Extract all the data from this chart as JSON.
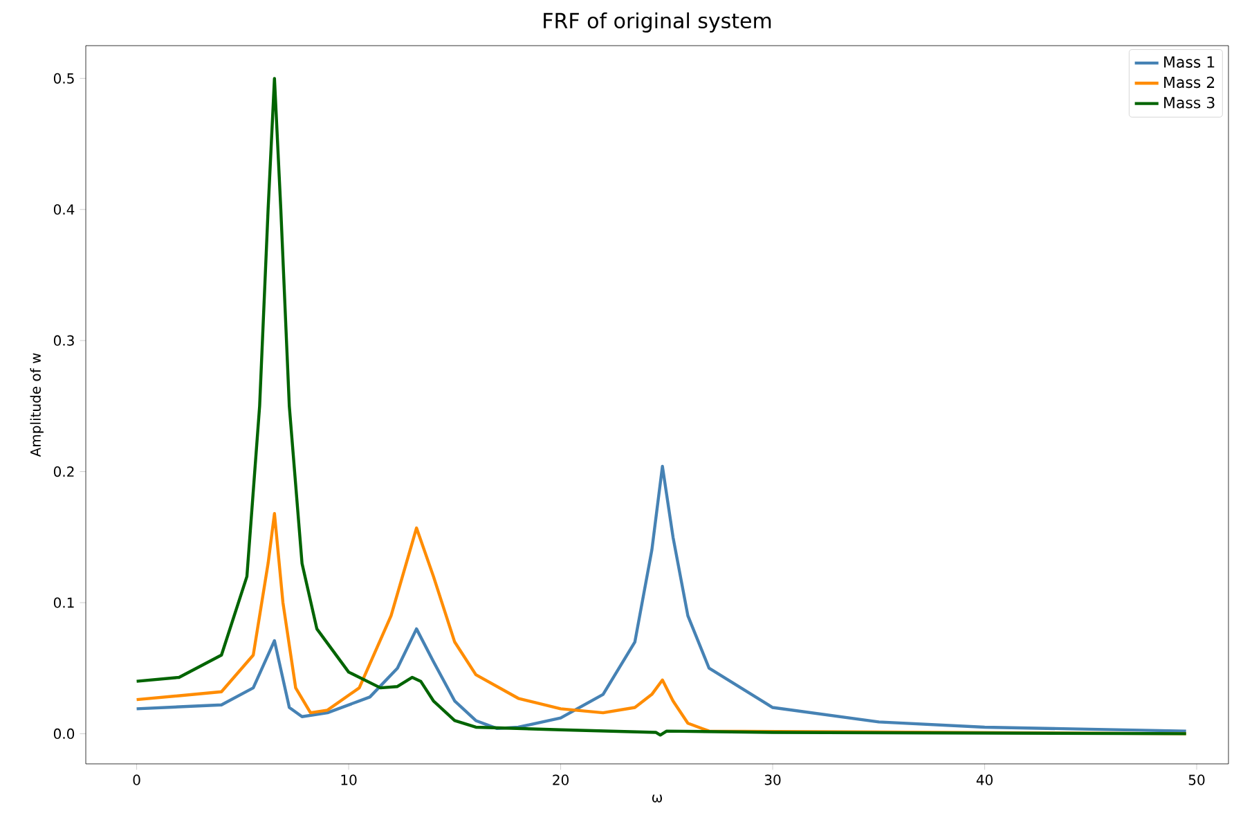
{
  "chart_data": {
    "type": "line",
    "title": "FRF of original system",
    "xlabel": "ω",
    "ylabel": "Amplitude of w",
    "xlim": [
      -2.4,
      51.5
    ],
    "ylim": [
      -0.023,
      0.525
    ],
    "xticks": [
      0,
      10,
      20,
      30,
      40,
      50
    ],
    "yticks": [
      {
        "value": 0,
        "label": "0.0"
      },
      {
        "value": 0.1,
        "label": "0.1"
      },
      {
        "value": 0.2,
        "label": "0.2"
      },
      {
        "value": 0.3,
        "label": "0.3"
      },
      {
        "value": 0.4,
        "label": "0.4"
      },
      {
        "value": 0.5,
        "label": "0.5"
      }
    ],
    "legend": "top right",
    "grid": false,
    "marker": "none",
    "line_style": "solid",
    "series": [
      {
        "name": "Mass 1",
        "color": "#4682b4",
        "x": [
          0,
          4,
          5.5,
          6.5,
          7.2,
          7.8,
          9,
          11,
          12.3,
          13.2,
          14,
          15,
          16,
          17,
          18,
          20,
          22,
          23.5,
          24.3,
          24.8,
          25.3,
          26,
          27,
          30,
          35,
          40,
          49.5
        ],
        "values": [
          0.019,
          0.022,
          0.035,
          0.071,
          0.02,
          0.013,
          0.016,
          0.028,
          0.05,
          0.08,
          0.055,
          0.025,
          0.01,
          0.004,
          0.005,
          0.012,
          0.03,
          0.07,
          0.14,
          0.204,
          0.15,
          0.09,
          0.05,
          0.02,
          0.009,
          0.005,
          0.002
        ]
      },
      {
        "name": "Mass 2",
        "color": "#ff8c00",
        "x": [
          0,
          4,
          5.5,
          6.2,
          6.5,
          6.9,
          7.5,
          8.2,
          9,
          10.5,
          12,
          13.2,
          14,
          15,
          16,
          18,
          20,
          22,
          23.5,
          24.3,
          24.8,
          25.3,
          26,
          27,
          49.5
        ],
        "values": [
          0.026,
          0.032,
          0.06,
          0.13,
          0.168,
          0.1,
          0.035,
          0.016,
          0.018,
          0.035,
          0.09,
          0.157,
          0.12,
          0.07,
          0.045,
          0.027,
          0.019,
          0.016,
          0.02,
          0.03,
          0.041,
          0.025,
          0.008,
          0.002,
          0
        ]
      },
      {
        "name": "Mass 3",
        "color": "#006400",
        "x": [
          0,
          2,
          4,
          5.2,
          5.8,
          6.2,
          6.5,
          6.8,
          7.2,
          7.8,
          8.5,
          10,
          11.5,
          12.3,
          13,
          13.4,
          14,
          15,
          16,
          20,
          24.5,
          24.7,
          25,
          30,
          49.5
        ],
        "values": [
          0.04,
          0.043,
          0.06,
          0.12,
          0.25,
          0.4,
          0.5,
          0.4,
          0.25,
          0.13,
          0.08,
          0.047,
          0.035,
          0.036,
          0.043,
          0.04,
          0.025,
          0.01,
          0.005,
          0.003,
          0.001,
          -0.001,
          0.002,
          0.001,
          0
        ]
      }
    ]
  }
}
